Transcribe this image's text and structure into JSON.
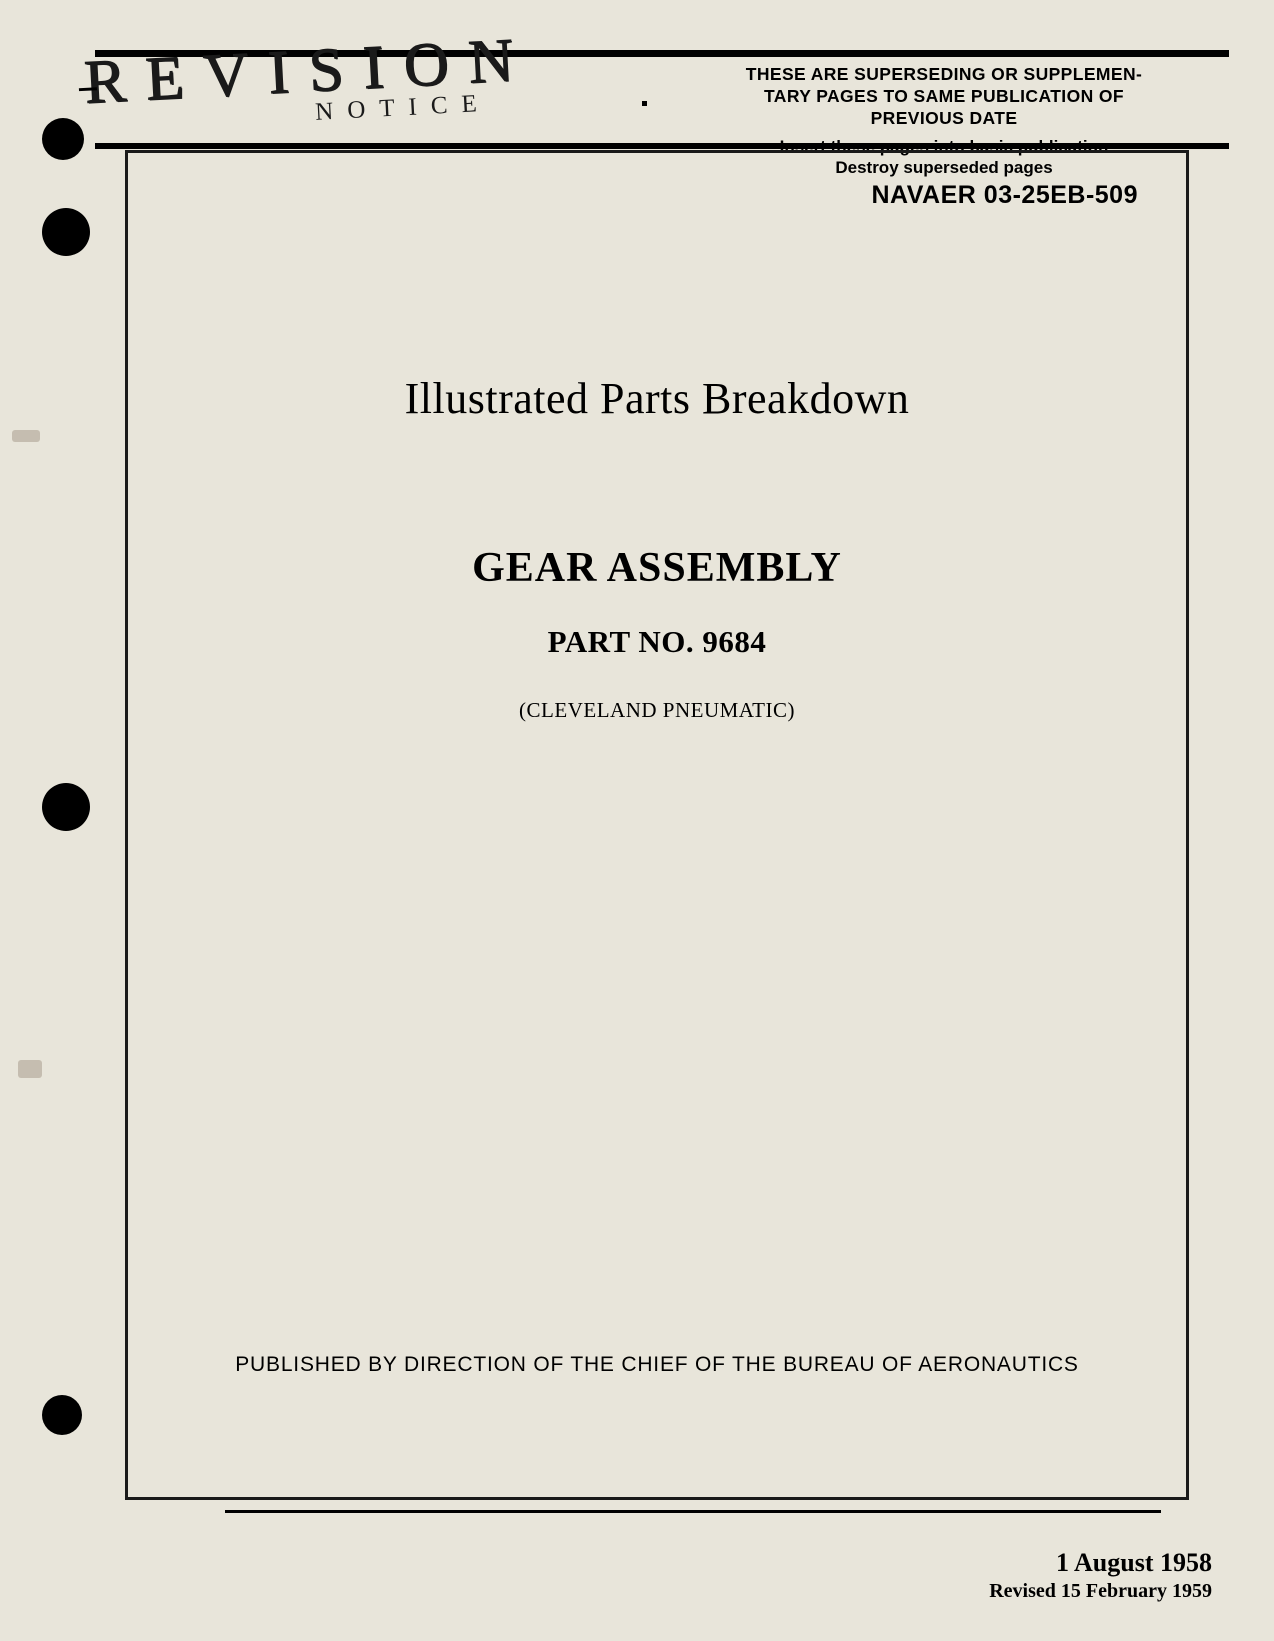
{
  "header": {
    "revision": "REVISION",
    "notice": "NOTICE",
    "supersede_line1": "THESE ARE SUPERSEDING OR SUPPLEMEN-",
    "supersede_line2": "TARY PAGES TO SAME PUBLICATION OF",
    "supersede_line3": "PREVIOUS DATE",
    "instruction_line1": "Insert these pages into basic publication",
    "instruction_line2": "Destroy superseded pages"
  },
  "document": {
    "doc_number": "NAVAER 03-25EB-509",
    "title": "Illustrated Parts Breakdown",
    "main_title": "GEAR ASSEMBLY",
    "part_no": "PART NO. 9684",
    "manufacturer": "(CLEVELAND PNEUMATIC)",
    "publisher": "PUBLISHED BY DIRECTION OF THE CHIEF OF THE BUREAU OF AERONAUTICS"
  },
  "dates": {
    "original": "1 August 1958",
    "revised": "Revised 15 February 1959"
  },
  "colors": {
    "background": "#e8e5da",
    "text": "#000000",
    "border": "#1a1a1a"
  }
}
